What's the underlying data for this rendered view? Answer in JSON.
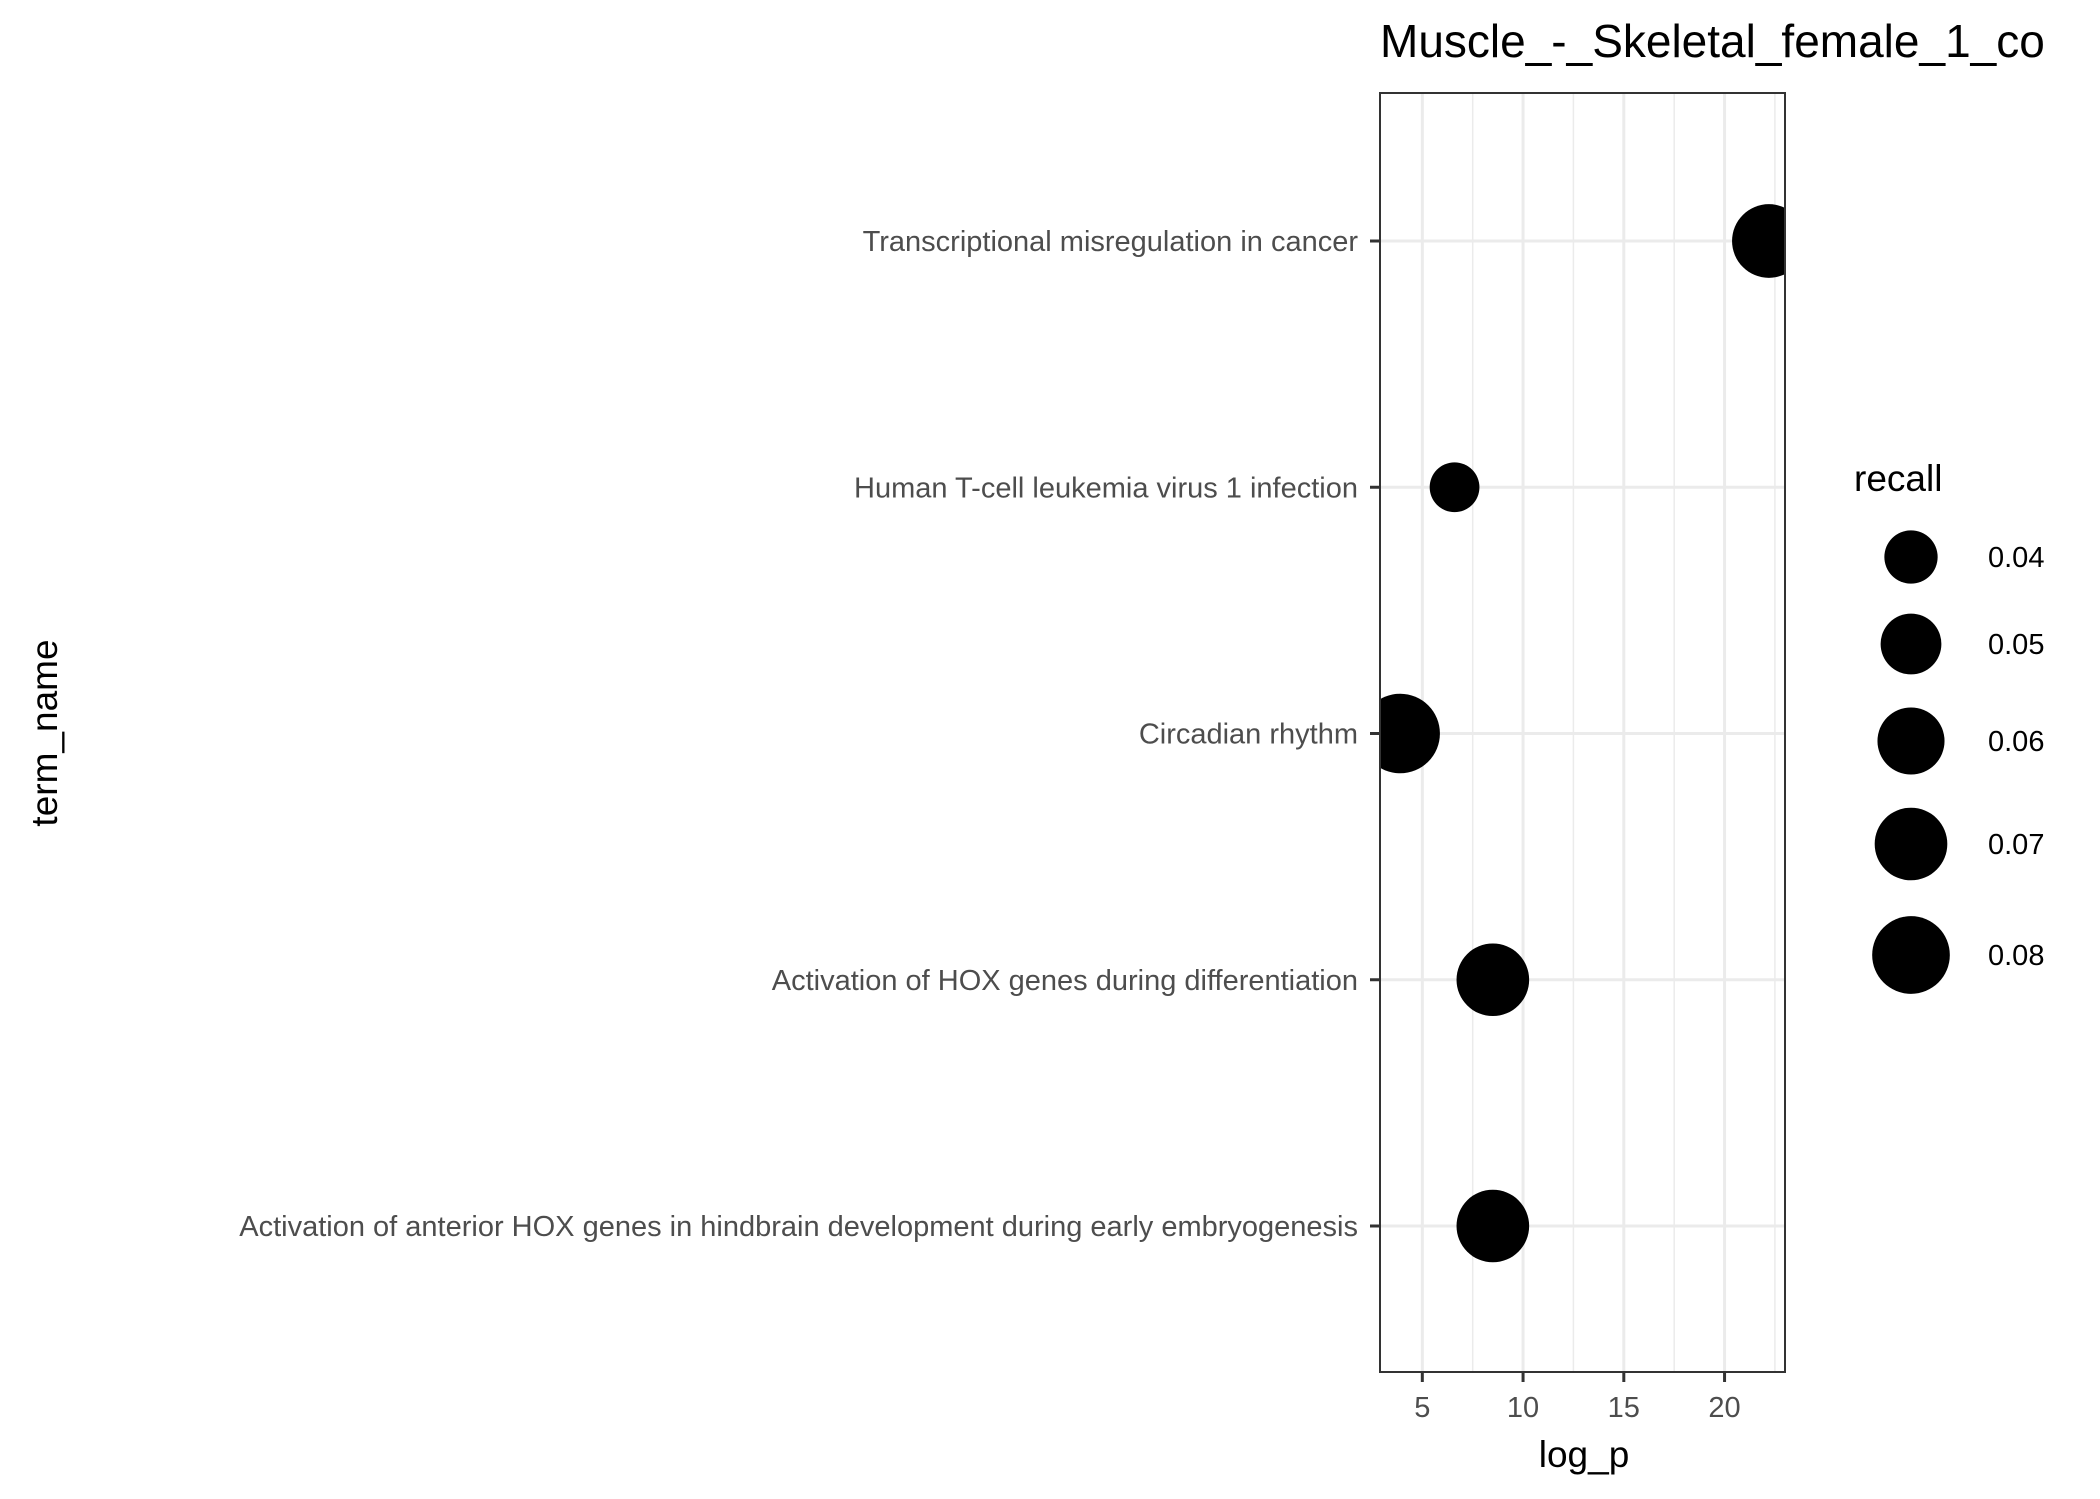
{
  "chart_data": {
    "type": "scatter",
    "title": "Muscle_-_Skeletal_female_1_co",
    "xlabel": "log_p",
    "ylabel": "term_name",
    "xlim": [
      2.9,
      23.0
    ],
    "x_ticks": [
      5,
      10,
      15,
      20
    ],
    "x_tick_labels": [
      "5",
      "10",
      "15",
      "20"
    ],
    "categories": [
      "Transcriptional misregulation in cancer",
      "Human T-cell leukemia virus 1 infection",
      "Circadian rhythm",
      "Activation of HOX genes during differentiation",
      "Activation of anterior HOX genes in hindbrain development during early embryogenesis"
    ],
    "points": [
      {
        "term": "Transcriptional misregulation in cancer",
        "log_p": 22.2,
        "recall": 0.072
      },
      {
        "term": "Human T-cell leukemia virus 1 infection",
        "log_p": 6.6,
        "recall": 0.036
      },
      {
        "term": "Circadian rhythm",
        "log_p": 3.9,
        "recall": 0.084
      },
      {
        "term": "Activation of HOX genes during differentiation",
        "log_p": 8.5,
        "recall": 0.07
      },
      {
        "term": "Activation of anterior HOX genes in hindbrain development during early embryogenesis",
        "log_p": 8.5,
        "recall": 0.07
      }
    ],
    "legend": {
      "title": "recall",
      "position": "right",
      "entries": [
        {
          "label": "0.04",
          "value": 0.04
        },
        {
          "label": "0.05",
          "value": 0.05
        },
        {
          "label": "0.06",
          "value": 0.06
        },
        {
          "label": "0.07",
          "value": 0.07
        },
        {
          "label": "0.08",
          "value": 0.08
        }
      ]
    },
    "grid": true,
    "colors": {
      "point": "#000000",
      "grid": "#ebebeb",
      "panel_border": "#333333",
      "axis_text": "#4d4d4d",
      "title": "#000000"
    }
  }
}
